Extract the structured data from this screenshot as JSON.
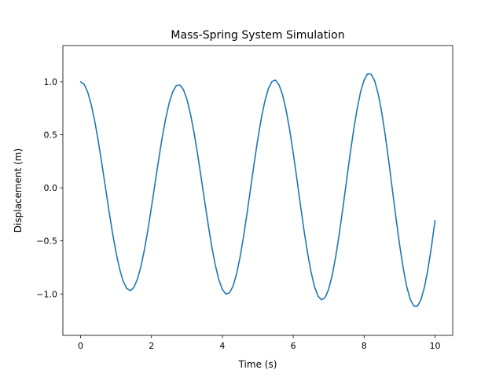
{
  "chart_data": {
    "type": "line",
    "title": "Mass-Spring System Simulation",
    "xlabel": "Time (s)",
    "ylabel": "Displacement (m)",
    "xlim": [
      -0.5,
      10.5
    ],
    "ylim": [
      -1.39,
      1.34
    ],
    "xticks": [
      0,
      2,
      4,
      6,
      8,
      10
    ],
    "xtick_labels": [
      "0",
      "2",
      "4",
      "6",
      "8",
      "10"
    ],
    "yticks": [
      -1.0,
      -0.5,
      0.0,
      0.5,
      1.0
    ],
    "ytick_labels": [
      "−1.0",
      "−0.5",
      "0.0",
      "0.5",
      "1.0"
    ],
    "grid": false,
    "series": [
      {
        "color": "#1f77b4",
        "x": [
          0,
          0.1,
          0.2,
          0.3,
          0.4,
          0.5,
          0.6,
          0.7,
          0.8,
          0.9,
          1.0,
          1.1,
          1.2,
          1.3,
          1.4,
          1.5,
          1.6,
          1.7,
          1.8,
          1.9,
          2.0,
          2.1,
          2.2,
          2.3,
          2.4,
          2.5,
          2.6,
          2.7,
          2.8,
          2.9,
          3.0,
          3.1,
          3.2,
          3.3,
          3.4,
          3.5,
          3.6,
          3.7,
          3.8,
          3.9,
          4.0,
          4.1,
          4.2,
          4.3,
          4.4,
          4.5,
          4.6,
          4.7,
          4.8,
          4.9,
          5.0,
          5.1,
          5.2,
          5.3,
          5.4,
          5.5,
          5.6,
          5.7,
          5.8,
          5.9,
          6.0,
          6.1,
          6.2,
          6.3,
          6.4,
          6.5,
          6.6,
          6.7,
          6.8,
          6.9,
          7.0,
          7.1,
          7.2,
          7.3,
          7.4,
          7.5,
          7.6,
          7.7,
          7.8,
          7.9,
          8.0,
          8.1,
          8.2,
          8.3,
          8.4,
          8.5,
          8.6,
          8.7,
          8.8,
          8.9,
          9.0,
          9.1,
          9.2,
          9.3,
          9.4,
          9.5,
          9.6,
          9.7,
          9.8,
          9.9,
          10.0
        ],
        "y": [
          1.0,
          0.975,
          0.902,
          0.784,
          0.627,
          0.438,
          0.227,
          0.006,
          -0.215,
          -0.424,
          -0.609,
          -0.764,
          -0.878,
          -0.947,
          -0.969,
          -0.94,
          -0.864,
          -0.744,
          -0.585,
          -0.394,
          -0.182,
          0.04,
          0.26,
          0.468,
          0.65,
          0.799,
          0.904,
          0.963,
          0.97,
          0.926,
          0.834,
          0.696,
          0.522,
          0.321,
          0.101,
          -0.124,
          -0.345,
          -0.549,
          -0.726,
          -0.865,
          -0.958,
          -1.001,
          -0.99,
          -0.928,
          -0.813,
          -0.652,
          -0.455,
          -0.233,
          0.002,
          0.237,
          0.459,
          0.656,
          0.818,
          0.935,
          1.002,
          1.014,
          0.97,
          0.875,
          0.731,
          0.545,
          0.328,
          0.091,
          -0.154,
          -0.391,
          -0.606,
          -0.789,
          -0.93,
          -1.02,
          -1.055,
          -1.033,
          -0.955,
          -0.824,
          -0.646,
          -0.431,
          -0.193,
          0.057,
          0.304,
          0.534,
          0.738,
          0.902,
          1.016,
          1.074,
          1.07,
          1.005,
          0.881,
          0.705,
          0.487,
          0.24,
          -0.024,
          -0.285,
          -0.532,
          -0.751,
          -0.926,
          -1.049,
          -1.114,
          -1.117,
          -1.058,
          -0.94,
          -0.77,
          -0.557,
          -0.31
        ]
      }
    ]
  }
}
